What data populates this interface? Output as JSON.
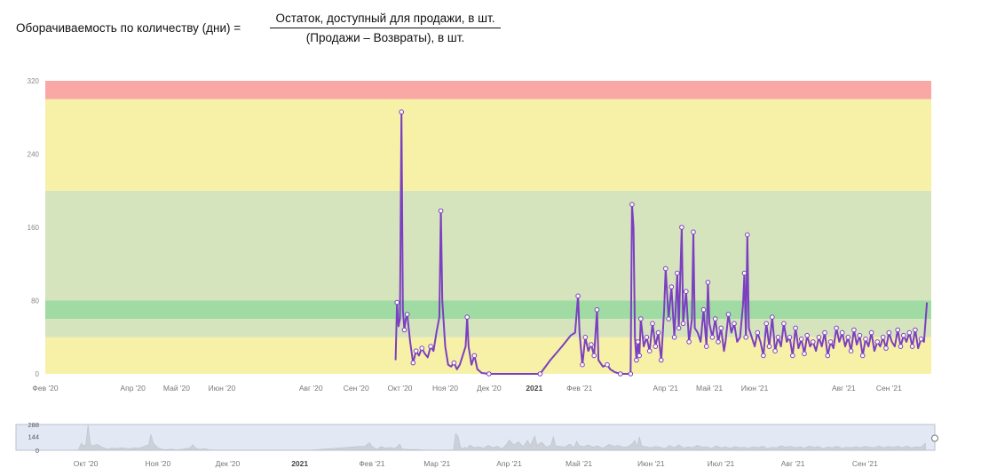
{
  "formula": {
    "label": "Оборачиваемость по количеству (дни) =",
    "numerator": "Остаток, доступный для продажи, в шт.",
    "denominator": "(Продажи – Возвраты), в шт."
  },
  "colors": {
    "zone_red": "#f9a8a6",
    "zone_yellow": "#f6f1a7",
    "zone_lightgreen": "#d6e4bd",
    "zone_green": "#9fdba3",
    "line": "#7b3fc1",
    "navigator_bg": "#e3e8f5",
    "navigator_series": "#c9ccd4"
  },
  "chart_data": [
    {
      "type": "line",
      "ylim": [
        0,
        320
      ],
      "y_ticks": [
        "0",
        "80",
        "160",
        "240",
        "320"
      ],
      "x_tick_labels": [
        {
          "date": "2020-02-01",
          "label": "Фев '20"
        },
        {
          "date": "2020-04-01",
          "label": "Апр '20"
        },
        {
          "date": "2020-05-01",
          "label": "Май '20"
        },
        {
          "date": "2020-06-01",
          "label": "Июн '20"
        },
        {
          "date": "2020-08-01",
          "label": "Авг '20"
        },
        {
          "date": "2020-09-01",
          "label": "Сен '20"
        },
        {
          "date": "2020-10-01",
          "label": "Окт '20"
        },
        {
          "date": "2020-11-01",
          "label": "Ноя '20"
        },
        {
          "date": "2020-12-01",
          "label": "Дек '20"
        },
        {
          "date": "2021-01-01",
          "label": "2021",
          "bold": true
        },
        {
          "date": "2021-02-01",
          "label": "Фев '21"
        },
        {
          "date": "2021-04-01",
          "label": "Апр '21"
        },
        {
          "date": "2021-05-01",
          "label": "Май '21"
        },
        {
          "date": "2021-06-01",
          "label": "Июн '21"
        },
        {
          "date": "2021-08-01",
          "label": "Авг '21"
        },
        {
          "date": "2021-09-01",
          "label": "Сен '21"
        }
      ],
      "x_range": [
        "2020-02-01",
        "2021-09-30"
      ],
      "bands": [
        {
          "from": 0,
          "to": 40,
          "color": "zone_yellow"
        },
        {
          "from": 40,
          "to": 60,
          "color": "zone_lightgreen"
        },
        {
          "from": 60,
          "to": 80,
          "color": "zone_green"
        },
        {
          "from": 80,
          "to": 200,
          "color": "zone_lightgreen"
        },
        {
          "from": 200,
          "to": 300,
          "color": "zone_yellow"
        },
        {
          "from": 300,
          "to": 320,
          "color": "zone_red"
        }
      ],
      "series": [
        {
          "points": [
            [
              "2020-09-28",
              15
            ],
            [
              "2020-09-29",
              78
            ],
            [
              "2020-09-30",
              52
            ],
            [
              "2020-10-01",
              60
            ],
            [
              "2020-10-02",
              286
            ],
            [
              "2020-10-03",
              70
            ],
            [
              "2020-10-04",
              48
            ],
            [
              "2020-10-05",
              60
            ],
            [
              "2020-10-06",
              65
            ],
            [
              "2020-10-08",
              35
            ],
            [
              "2020-10-10",
              12
            ],
            [
              "2020-10-12",
              25
            ],
            [
              "2020-10-14",
              20
            ],
            [
              "2020-10-16",
              28
            ],
            [
              "2020-10-18",
              22
            ],
            [
              "2020-10-20",
              18
            ],
            [
              "2020-10-22",
              30
            ],
            [
              "2020-10-24",
              25
            ],
            [
              "2020-10-26",
              45
            ],
            [
              "2020-10-28",
              62
            ],
            [
              "2020-10-29",
              178
            ],
            [
              "2020-10-30",
              80
            ],
            [
              "2020-11-01",
              30
            ],
            [
              "2020-11-03",
              10
            ],
            [
              "2020-11-05",
              8
            ],
            [
              "2020-11-07",
              12
            ],
            [
              "2020-11-09",
              5
            ],
            [
              "2020-11-11",
              10
            ],
            [
              "2020-11-13",
              20
            ],
            [
              "2020-11-15",
              30
            ],
            [
              "2020-11-16",
              62
            ],
            [
              "2020-11-17",
              30
            ],
            [
              "2020-11-19",
              10
            ],
            [
              "2020-11-21",
              20
            ],
            [
              "2020-11-23",
              5
            ],
            [
              "2020-11-26",
              1
            ],
            [
              "2020-12-01",
              0
            ],
            [
              "2020-12-20",
              0
            ],
            [
              "2021-01-05",
              0
            ],
            [
              "2021-01-12",
              15
            ],
            [
              "2021-01-20",
              30
            ],
            [
              "2021-01-26",
              42
            ],
            [
              "2021-01-29",
              45
            ],
            [
              "2021-01-31",
              85
            ],
            [
              "2021-02-01",
              45
            ],
            [
              "2021-02-03",
              10
            ],
            [
              "2021-02-05",
              40
            ],
            [
              "2021-02-07",
              25
            ],
            [
              "2021-02-09",
              32
            ],
            [
              "2021-02-11",
              20
            ],
            [
              "2021-02-13",
              70
            ],
            [
              "2021-02-14",
              15
            ],
            [
              "2021-02-17",
              8
            ],
            [
              "2021-02-20",
              10
            ],
            [
              "2021-02-22",
              5
            ],
            [
              "2021-02-25",
              2
            ],
            [
              "2021-03-01",
              0
            ],
            [
              "2021-03-05",
              0
            ],
            [
              "2021-03-08",
              0
            ],
            [
              "2021-03-09",
              185
            ],
            [
              "2021-03-10",
              160
            ],
            [
              "2021-03-11",
              40
            ],
            [
              "2021-03-12",
              15
            ],
            [
              "2021-03-13",
              35
            ],
            [
              "2021-03-14",
              20
            ],
            [
              "2021-03-15",
              60
            ],
            [
              "2021-03-17",
              30
            ],
            [
              "2021-03-19",
              40
            ],
            [
              "2021-03-21",
              25
            ],
            [
              "2021-03-23",
              55
            ],
            [
              "2021-03-25",
              30
            ],
            [
              "2021-03-27",
              45
            ],
            [
              "2021-03-29",
              15
            ],
            [
              "2021-03-31",
              70
            ],
            [
              "2021-04-01",
              115
            ],
            [
              "2021-04-03",
              60
            ],
            [
              "2021-04-05",
              95
            ],
            [
              "2021-04-07",
              40
            ],
            [
              "2021-04-09",
              110
            ],
            [
              "2021-04-10",
              50
            ],
            [
              "2021-04-12",
              160
            ],
            [
              "2021-04-13",
              55
            ],
            [
              "2021-04-15",
              90
            ],
            [
              "2021-04-17",
              35
            ],
            [
              "2021-04-19",
              60
            ],
            [
              "2021-04-20",
              155
            ],
            [
              "2021-04-21",
              50
            ],
            [
              "2021-04-23",
              45
            ],
            [
              "2021-04-25",
              35
            ],
            [
              "2021-04-27",
              70
            ],
            [
              "2021-04-29",
              30
            ],
            [
              "2021-04-30",
              100
            ],
            [
              "2021-05-01",
              55
            ],
            [
              "2021-05-03",
              40
            ],
            [
              "2021-05-05",
              60
            ],
            [
              "2021-05-07",
              35
            ],
            [
              "2021-05-09",
              50
            ],
            [
              "2021-05-11",
              25
            ],
            [
              "2021-05-12",
              35
            ],
            [
              "2021-05-14",
              65
            ],
            [
              "2021-05-16",
              45
            ],
            [
              "2021-05-18",
              55
            ],
            [
              "2021-05-20",
              35
            ],
            [
              "2021-05-22",
              40
            ],
            [
              "2021-05-24",
              75
            ],
            [
              "2021-05-25",
              110
            ],
            [
              "2021-05-26",
              40
            ],
            [
              "2021-05-27",
              152
            ],
            [
              "2021-05-28",
              50
            ],
            [
              "2021-05-30",
              40
            ],
            [
              "2021-06-01",
              30
            ],
            [
              "2021-06-03",
              45
            ],
            [
              "2021-06-05",
              35
            ],
            [
              "2021-06-07",
              20
            ],
            [
              "2021-06-09",
              55
            ],
            [
              "2021-06-11",
              30
            ],
            [
              "2021-06-13",
              62
            ],
            [
              "2021-06-15",
              25
            ],
            [
              "2021-06-17",
              40
            ],
            [
              "2021-06-19",
              30
            ],
            [
              "2021-06-21",
              55
            ],
            [
              "2021-06-23",
              35
            ],
            [
              "2021-06-25",
              40
            ],
            [
              "2021-06-27",
              20
            ],
            [
              "2021-06-29",
              50
            ],
            [
              "2021-07-01",
              28
            ],
            [
              "2021-07-03",
              38
            ],
            [
              "2021-07-05",
              22
            ],
            [
              "2021-07-07",
              42
            ],
            [
              "2021-07-09",
              30
            ],
            [
              "2021-07-11",
              35
            ],
            [
              "2021-07-13",
              25
            ],
            [
              "2021-07-15",
              40
            ],
            [
              "2021-07-17",
              30
            ],
            [
              "2021-07-19",
              45
            ],
            [
              "2021-07-21",
              20
            ],
            [
              "2021-07-23",
              35
            ],
            [
              "2021-07-25",
              28
            ],
            [
              "2021-07-27",
              50
            ],
            [
              "2021-07-29",
              35
            ],
            [
              "2021-07-31",
              45
            ],
            [
              "2021-08-02",
              30
            ],
            [
              "2021-08-04",
              40
            ],
            [
              "2021-08-06",
              25
            ],
            [
              "2021-08-08",
              48
            ],
            [
              "2021-08-10",
              32
            ],
            [
              "2021-08-12",
              42
            ],
            [
              "2021-08-14",
              20
            ],
            [
              "2021-08-16",
              38
            ],
            [
              "2021-08-18",
              30
            ],
            [
              "2021-08-20",
              45
            ],
            [
              "2021-08-22",
              25
            ],
            [
              "2021-08-24",
              35
            ],
            [
              "2021-08-26",
              30
            ],
            [
              "2021-08-28",
              40
            ],
            [
              "2021-08-30",
              28
            ],
            [
              "2021-09-01",
              45
            ],
            [
              "2021-09-03",
              35
            ],
            [
              "2021-09-05",
              30
            ],
            [
              "2021-09-07",
              48
            ],
            [
              "2021-09-09",
              30
            ],
            [
              "2021-09-11",
              42
            ],
            [
              "2021-09-13",
              35
            ],
            [
              "2021-09-15",
              45
            ],
            [
              "2021-09-17",
              30
            ],
            [
              "2021-09-19",
              48
            ],
            [
              "2021-09-21",
              28
            ],
            [
              "2021-09-23",
              38
            ],
            [
              "2021-09-25",
              35
            ],
            [
              "2021-09-27",
              78
            ]
          ]
        }
      ]
    },
    {
      "type": "area",
      "role": "navigator",
      "y_ticks": [
        "0",
        "144",
        "288"
      ],
      "x_tick_labels": [
        {
          "date": "2020-10-01",
          "label": "Окт '20"
        },
        {
          "date": "2020-11-01",
          "label": "Ноя '20"
        },
        {
          "date": "2020-12-01",
          "label": "Дек '20"
        },
        {
          "date": "2021-01-01",
          "label": "2021",
          "bold": true
        },
        {
          "date": "2021-02-01",
          "label": "Фев '21"
        },
        {
          "date": "2021-03-01",
          "label": "Мар '21"
        },
        {
          "date": "2021-04-01",
          "label": "Апр '21"
        },
        {
          "date": "2021-05-01",
          "label": "Май '21"
        },
        {
          "date": "2021-06-01",
          "label": "Июн '21"
        },
        {
          "date": "2021-07-01",
          "label": "Июл '21"
        },
        {
          "date": "2021-08-01",
          "label": "Авг '21"
        },
        {
          "date": "2021-09-01",
          "label": "Сен '21"
        }
      ]
    }
  ]
}
